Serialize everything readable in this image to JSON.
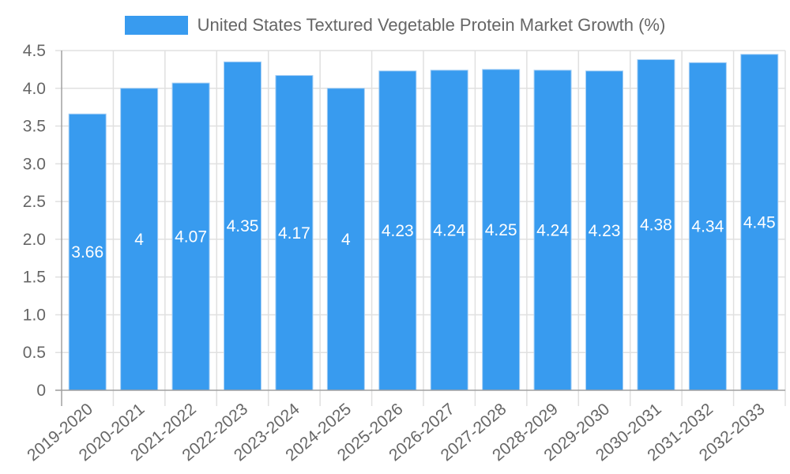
{
  "legend": {
    "label": "United States Textured Vegetable Protein Market Growth (%)",
    "color": "#389bef"
  },
  "colors": {
    "bar": "#389bef",
    "bar_border": "#a6cff5",
    "grid": "#e0e0e0",
    "axis": "#a0a0a0",
    "tick_text": "#666666",
    "bar_label": "#ffffff"
  },
  "chart_data": {
    "type": "bar",
    "title": "",
    "xlabel": "",
    "ylabel": "",
    "legend": [
      "United States Textured Vegetable Protein Market Growth (%)"
    ],
    "legend_position": "top",
    "grid": true,
    "ylim": [
      0,
      4.5
    ],
    "yticks": [
      "0",
      "0.5",
      "1.0",
      "1.5",
      "2.0",
      "2.5",
      "3.0",
      "3.5",
      "4.0",
      "4.5"
    ],
    "categories": [
      "2019-2020",
      "2020-2021",
      "2021-2022",
      "2022-2023",
      "2023-2024",
      "2024-2025",
      "2025-2026",
      "2026-2027",
      "2027-2028",
      "2028-2029",
      "2029-2030",
      "2030-2031",
      "2031-2032",
      "2032-2033"
    ],
    "series": [
      {
        "name": "United States Textured Vegetable Protein Market Growth (%)",
        "values": [
          3.66,
          4,
          4.07,
          4.35,
          4.17,
          4,
          4.23,
          4.24,
          4.25,
          4.24,
          4.23,
          4.38,
          4.34,
          4.45
        ]
      }
    ],
    "data_labels": [
      "3.66",
      "4",
      "4.07",
      "4.35",
      "4.17",
      "4",
      "4.23",
      "4.24",
      "4.25",
      "4.24",
      "4.23",
      "4.38",
      "4.34",
      "4.45"
    ]
  }
}
